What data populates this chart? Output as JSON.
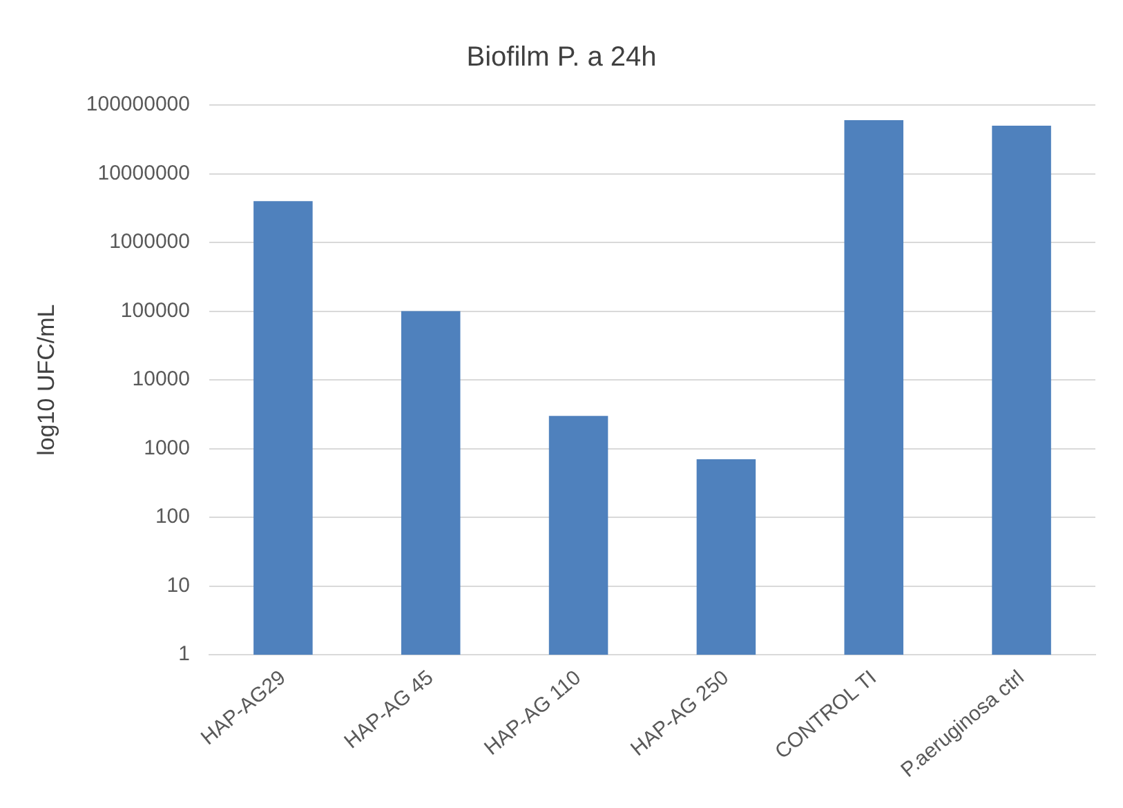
{
  "chart_data": {
    "type": "bar",
    "title": "Biofilm P. a 24h",
    "ylabel": "log10 UFC/mL",
    "categories": [
      "HAP-AG29",
      "HAP-AG 45",
      "HAP-AG 110",
      "HAP-AG 250",
      "CONTROL TI",
      "P.aeruginosa ctrl"
    ],
    "values": [
      4000000,
      100000,
      3000,
      700,
      60000000,
      50000000
    ],
    "color": "#4f81bd",
    "log": true,
    "ylim": [
      1,
      100000000
    ],
    "yticks": [
      1,
      10,
      100,
      1000,
      10000,
      100000,
      1000000,
      10000000,
      100000000
    ],
    "grid": "y",
    "legend": false
  }
}
